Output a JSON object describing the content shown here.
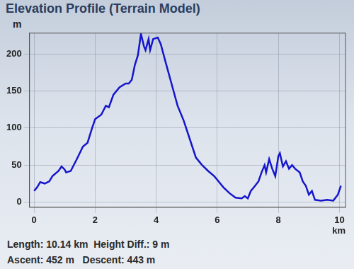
{
  "chart_data": {
    "type": "line",
    "title": "Elevation Profile (Terrain Model)",
    "y_label": "m",
    "x_label": "km",
    "annotations": [
      "Length: 10.14 km  Height Diff.: 9 m",
      "Ascent: 452 m   Descent: 443 m"
    ],
    "x": [
      0.0,
      0.1,
      0.2,
      0.35,
      0.5,
      0.6,
      0.8,
      0.9,
      1.0,
      1.05,
      1.2,
      1.4,
      1.6,
      1.75,
      1.9,
      2.0,
      2.2,
      2.35,
      2.45,
      2.6,
      2.8,
      3.0,
      3.1,
      3.2,
      3.3,
      3.4,
      3.5,
      3.6,
      3.65,
      3.75,
      3.8,
      3.9,
      4.05,
      4.15,
      4.3,
      4.5,
      4.7,
      4.9,
      5.1,
      5.3,
      5.5,
      5.7,
      5.9,
      6.0,
      6.2,
      6.4,
      6.6,
      6.8,
      6.9,
      7.0,
      7.1,
      7.2,
      7.35,
      7.45,
      7.55,
      7.6,
      7.7,
      7.8,
      7.9,
      8.0,
      8.05,
      8.15,
      8.25,
      8.35,
      8.45,
      8.55,
      8.7,
      8.8,
      8.9,
      9.0,
      9.1,
      9.2,
      9.4,
      9.6,
      9.8,
      9.95,
      10.05
    ],
    "values": [
      15,
      20,
      27,
      25,
      28,
      35,
      42,
      48,
      44,
      40,
      42,
      58,
      75,
      80,
      100,
      112,
      118,
      130,
      128,
      145,
      155,
      160,
      160,
      165,
      185,
      198,
      227,
      210,
      205,
      220,
      205,
      220,
      222,
      213,
      190,
      160,
      130,
      110,
      85,
      60,
      50,
      42,
      35,
      30,
      20,
      12,
      6,
      5,
      8,
      5,
      15,
      20,
      28,
      40,
      50,
      40,
      58,
      45,
      35,
      62,
      66,
      48,
      55,
      45,
      50,
      45,
      40,
      28,
      22,
      10,
      15,
      3,
      2,
      3,
      2,
      10,
      22
    ],
    "color": "#1515cc",
    "xlim": [
      -0.15,
      10.2
    ],
    "xticks": [
      0,
      2,
      4,
      6,
      8,
      10
    ],
    "ylim": [
      -7,
      228
    ],
    "yticks": [
      0,
      50,
      100,
      150,
      200
    ],
    "grid": true
  }
}
